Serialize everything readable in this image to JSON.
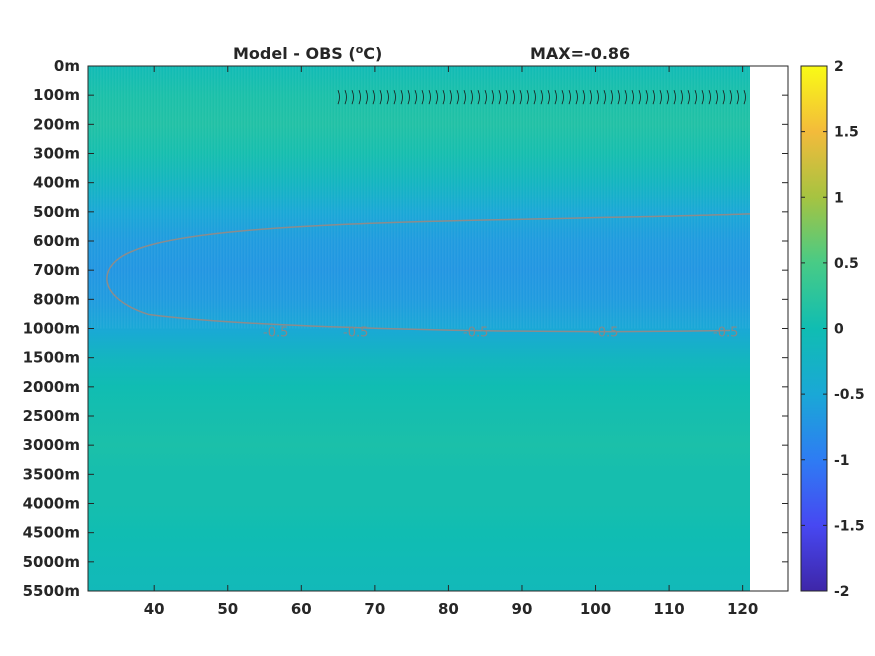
{
  "chart_data": {
    "type": "heatmap",
    "title": "Model - OBS (",
    "title_unit_superscript": "o",
    "title_unit_suffix": "C)",
    "max_label": "MAX=-0.86",
    "x_ticks": [
      40,
      50,
      60,
      70,
      80,
      90,
      100,
      110,
      120
    ],
    "x_range": [
      31,
      121
    ],
    "y_tick_labels": [
      "0m",
      "100m",
      "200m",
      "300m",
      "400m",
      "500m",
      "600m",
      "700m",
      "800m",
      "1000m",
      "1500m",
      "2000m",
      "2500m",
      "3000m",
      "3500m",
      "4000m",
      "4500m",
      "5000m",
      "5500m"
    ],
    "y_scale": "nonlinear (index-spaced depth levels)",
    "colorbar": {
      "range": [
        -2,
        2
      ],
      "ticks": [
        "2",
        "1.5",
        "1",
        "0.5",
        "0",
        "-0.5",
        "-1",
        "-1.5",
        "-2"
      ],
      "colormap": "parula"
    },
    "contour_labels": [
      "-0.5",
      "-0.5",
      "-0.5",
      "-0.5",
      "-0.5"
    ],
    "contour_level": -0.5,
    "field_description_values": [
      {
        "depth_level": "0m",
        "value": -0.05
      },
      {
        "depth_level": "100m",
        "value": 0.1
      },
      {
        "depth_level": "200m",
        "value": 0.15
      },
      {
        "depth_level": "300m",
        "value": 0.05
      },
      {
        "depth_level": "400m",
        "value": -0.2
      },
      {
        "depth_level": "500m",
        "value": -0.5
      },
      {
        "depth_level": "600m",
        "value": -0.65
      },
      {
        "depth_level": "700m",
        "value": -0.7
      },
      {
        "depth_level": "800m",
        "value": -0.65
      },
      {
        "depth_level": "1000m",
        "value": -0.5
      },
      {
        "depth_level": "1500m",
        "value": -0.2
      },
      {
        "depth_level": "2000m",
        "value": 0.0
      },
      {
        "depth_level": "2500m",
        "value": 0.05
      },
      {
        "depth_level": "3000m",
        "value": 0.1
      },
      {
        "depth_level": "3500m",
        "value": 0.05
      },
      {
        "depth_level": "4000m",
        "value": 0.05
      },
      {
        "depth_level": "4500m",
        "value": 0.0
      },
      {
        "depth_level": "5000m",
        "value": -0.05
      },
      {
        "depth_level": "5500m",
        "value": -0.1
      }
    ]
  }
}
